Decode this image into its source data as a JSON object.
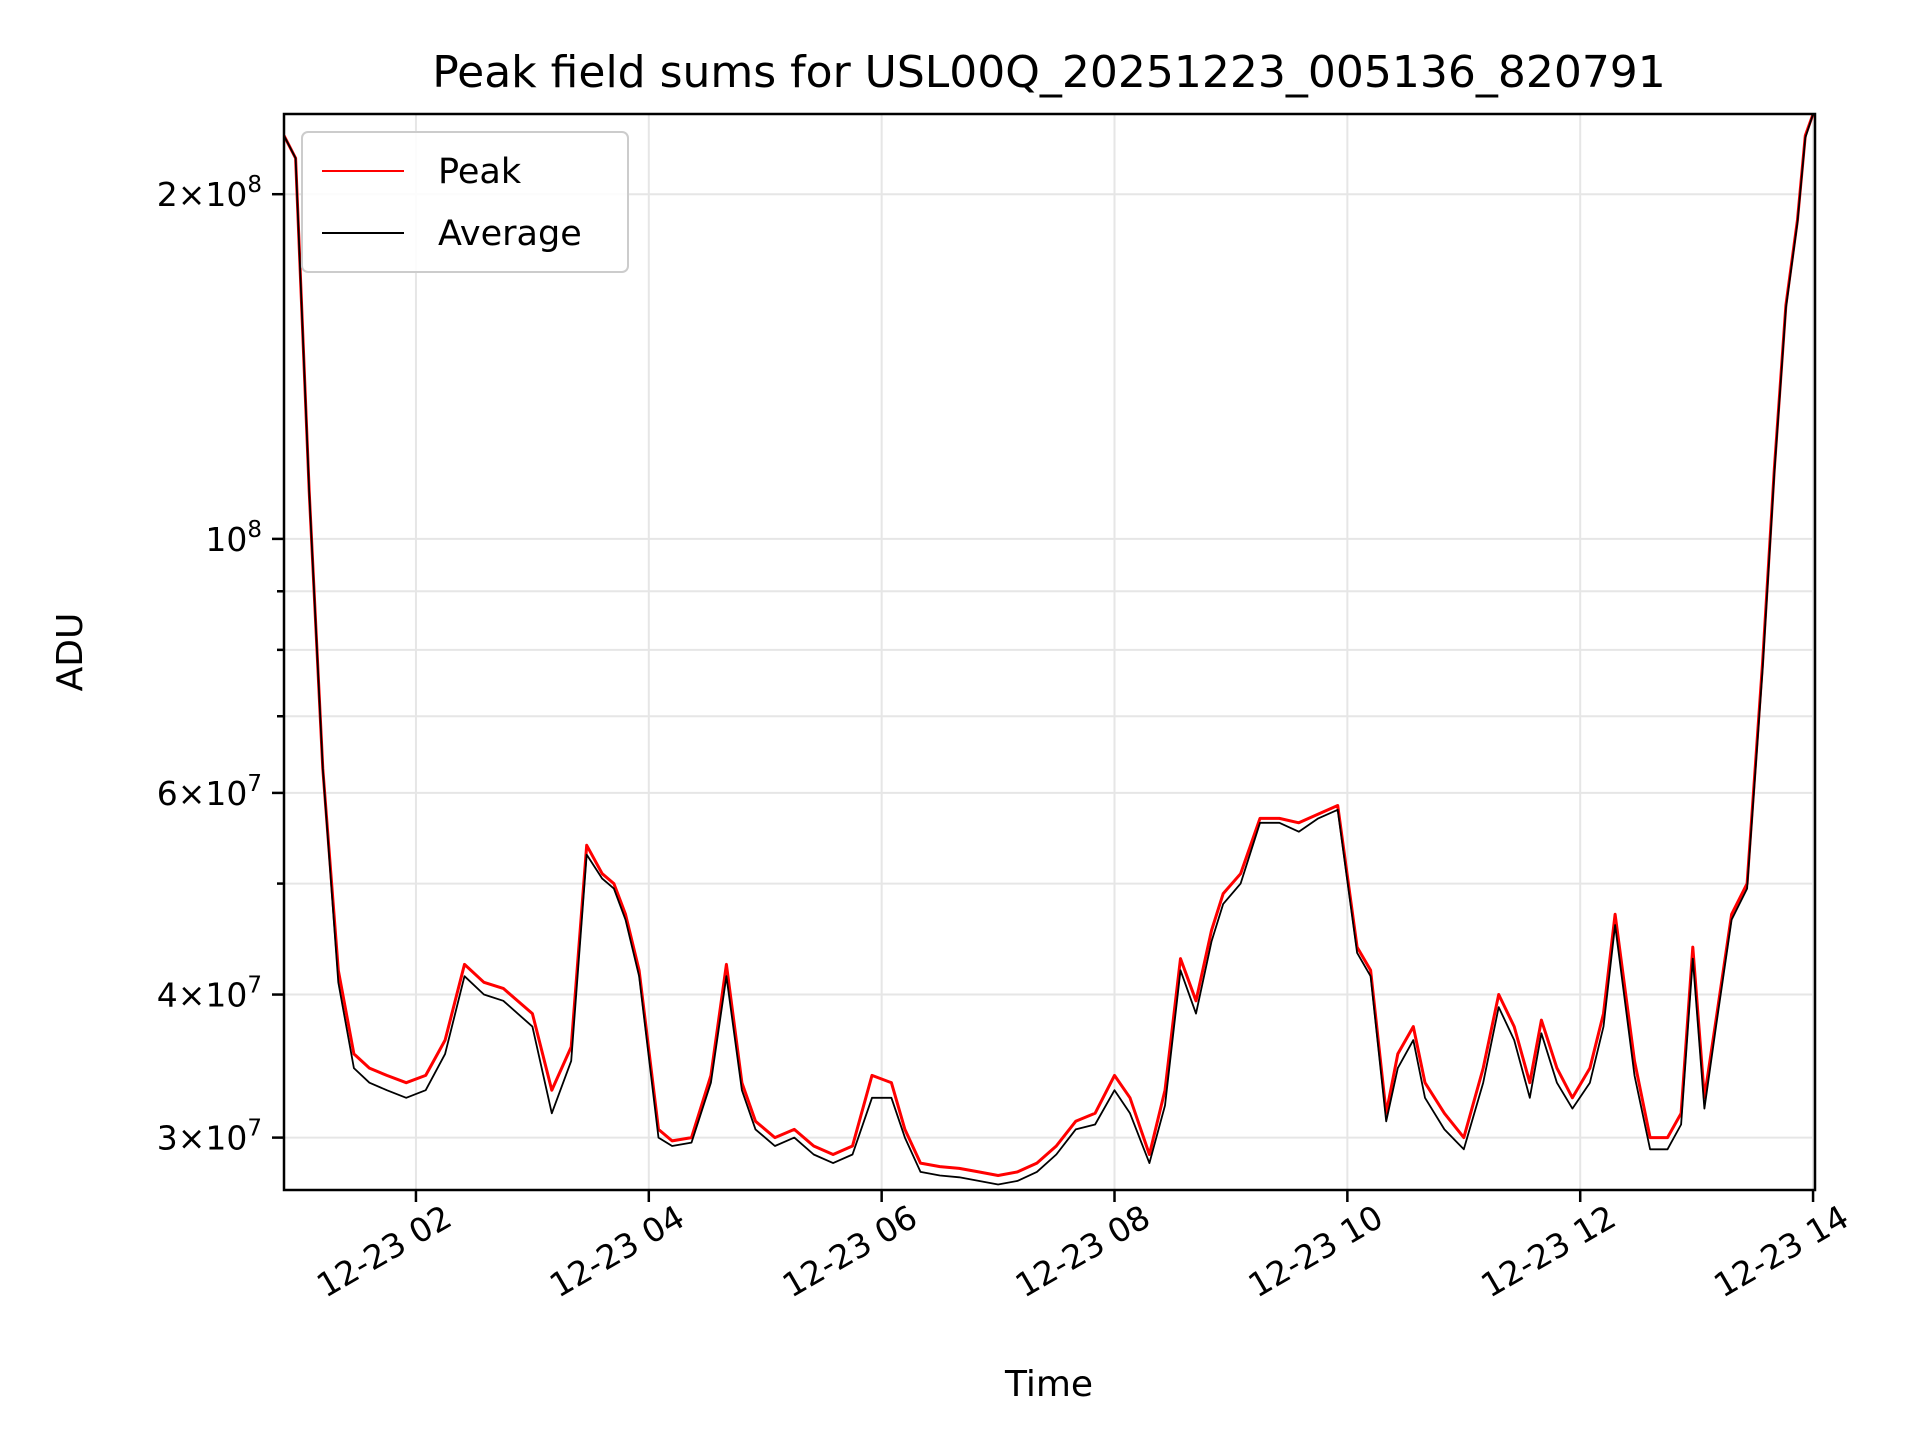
{
  "chart_data": {
    "type": "line",
    "title": "Peak field sums for USL00Q_20251223_005136_820791",
    "xlabel": "Time",
    "ylabel": "ADU",
    "yscale": "log",
    "xlim": [
      "2025-12-23 00:52",
      "2025-12-23 14:01"
    ],
    "ylim": [
      27000000,
      235000000
    ],
    "grid": true,
    "legend": "top-left",
    "x_ticks": [
      {
        "value": "2025-12-23 02:00",
        "label": "12-23 02"
      },
      {
        "value": "2025-12-23 04:00",
        "label": "12-23 04"
      },
      {
        "value": "2025-12-23 06:00",
        "label": "12-23 06"
      },
      {
        "value": "2025-12-23 08:00",
        "label": "12-23 08"
      },
      {
        "value": "2025-12-23 10:00",
        "label": "12-23 10"
      },
      {
        "value": "2025-12-23 12:00",
        "label": "12-23 12"
      },
      {
        "value": "2025-12-23 14:00",
        "label": "12-23 14"
      }
    ],
    "y_ticks": [
      {
        "value": 30000000,
        "mant": "3",
        "exp": "7"
      },
      {
        "value": 40000000,
        "mant": "4",
        "exp": "7"
      },
      {
        "value": 60000000,
        "mant": "6",
        "exp": "7"
      },
      {
        "value": 100000000,
        "mant": "",
        "exp": "8"
      },
      {
        "value": 200000000,
        "mant": "2",
        "exp": "8"
      }
    ],
    "y_minor_ticks": [
      50000000,
      70000000,
      80000000,
      90000000
    ],
    "series": [
      {
        "name": "Peak",
        "color": "#ff0000",
        "x": [
          "2025-12-23 00:52",
          "2025-12-23 00:58",
          "2025-12-23 01:05",
          "2025-12-23 01:12",
          "2025-12-23 01:20",
          "2025-12-23 01:28",
          "2025-12-23 01:36",
          "2025-12-23 01:45",
          "2025-12-23 01:55",
          "2025-12-23 02:05",
          "2025-12-23 02:15",
          "2025-12-23 02:25",
          "2025-12-23 02:35",
          "2025-12-23 02:45",
          "2025-12-23 03:00",
          "2025-12-23 03:10",
          "2025-12-23 03:20",
          "2025-12-23 03:28",
          "2025-12-23 03:36",
          "2025-12-23 03:42",
          "2025-12-23 03:48",
          "2025-12-23 03:55",
          "2025-12-23 04:05",
          "2025-12-23 04:12",
          "2025-12-23 04:22",
          "2025-12-23 04:32",
          "2025-12-23 04:40",
          "2025-12-23 04:48",
          "2025-12-23 04:55",
          "2025-12-23 05:05",
          "2025-12-23 05:15",
          "2025-12-23 05:25",
          "2025-12-23 05:35",
          "2025-12-23 05:45",
          "2025-12-23 05:55",
          "2025-12-23 06:05",
          "2025-12-23 06:12",
          "2025-12-23 06:20",
          "2025-12-23 06:30",
          "2025-12-23 06:40",
          "2025-12-23 06:50",
          "2025-12-23 07:00",
          "2025-12-23 07:10",
          "2025-12-23 07:20",
          "2025-12-23 07:30",
          "2025-12-23 07:40",
          "2025-12-23 07:50",
          "2025-12-23 08:00",
          "2025-12-23 08:08",
          "2025-12-23 08:18",
          "2025-12-23 08:26",
          "2025-12-23 08:34",
          "2025-12-23 08:42",
          "2025-12-23 08:50",
          "2025-12-23 08:56",
          "2025-12-23 09:05",
          "2025-12-23 09:15",
          "2025-12-23 09:25",
          "2025-12-23 09:35",
          "2025-12-23 09:45",
          "2025-12-23 09:55",
          "2025-12-23 10:05",
          "2025-12-23 10:12",
          "2025-12-23 10:20",
          "2025-12-23 10:26",
          "2025-12-23 10:34",
          "2025-12-23 10:40",
          "2025-12-23 10:50",
          "2025-12-23 11:00",
          "2025-12-23 11:10",
          "2025-12-23 11:18",
          "2025-12-23 11:26",
          "2025-12-23 11:34",
          "2025-12-23 11:40",
          "2025-12-23 11:48",
          "2025-12-23 11:56",
          "2025-12-23 12:05",
          "2025-12-23 12:12",
          "2025-12-23 12:18",
          "2025-12-23 12:28",
          "2025-12-23 12:36",
          "2025-12-23 12:45",
          "2025-12-23 12:52",
          "2025-12-23 12:58",
          "2025-12-23 13:04",
          "2025-12-23 13:10",
          "2025-12-23 13:18",
          "2025-12-23 13:26",
          "2025-12-23 13:34",
          "2025-12-23 13:40",
          "2025-12-23 13:46",
          "2025-12-23 13:52",
          "2025-12-23 13:56",
          "2025-12-23 14:00"
        ],
        "y": [
          225000000,
          215000000,
          110000000,
          63000000,
          42000000,
          35500000,
          34500000,
          34000000,
          33500000,
          34000000,
          36500000,
          42500000,
          41000000,
          40500000,
          38500000,
          33000000,
          36000000,
          54000000,
          51000000,
          50000000,
          47000000,
          42000000,
          30500000,
          29800000,
          30000000,
          34000000,
          42500000,
          33500000,
          31000000,
          30000000,
          30500000,
          29500000,
          29000000,
          29500000,
          34000000,
          33500000,
          30500000,
          28500000,
          28300000,
          28200000,
          28000000,
          27800000,
          28000000,
          28500000,
          29500000,
          31000000,
          31500000,
          34000000,
          32500000,
          29000000,
          33000000,
          43000000,
          39500000,
          45500000,
          49000000,
          51000000,
          57000000,
          57000000,
          56500000,
          57500000,
          58500000,
          44000000,
          42000000,
          31500000,
          35500000,
          37500000,
          33500000,
          31500000,
          30000000,
          34500000,
          40000000,
          37500000,
          33500000,
          38000000,
          34500000,
          32500000,
          34500000,
          38500000,
          47000000,
          35000000,
          30000000,
          30000000,
          31500000,
          44000000,
          32500000,
          38000000,
          47000000,
          50000000,
          78000000,
          115000000,
          160000000,
          190000000,
          225000000,
          235000000
        ]
      },
      {
        "name": "Average",
        "color": "#000000",
        "x": [
          "2025-12-23 00:52",
          "2025-12-23 00:58",
          "2025-12-23 01:05",
          "2025-12-23 01:12",
          "2025-12-23 01:20",
          "2025-12-23 01:28",
          "2025-12-23 01:36",
          "2025-12-23 01:45",
          "2025-12-23 01:55",
          "2025-12-23 02:05",
          "2025-12-23 02:15",
          "2025-12-23 02:25",
          "2025-12-23 02:35",
          "2025-12-23 02:45",
          "2025-12-23 03:00",
          "2025-12-23 03:10",
          "2025-12-23 03:20",
          "2025-12-23 03:28",
          "2025-12-23 03:36",
          "2025-12-23 03:42",
          "2025-12-23 03:48",
          "2025-12-23 03:55",
          "2025-12-23 04:05",
          "2025-12-23 04:12",
          "2025-12-23 04:22",
          "2025-12-23 04:32",
          "2025-12-23 04:40",
          "2025-12-23 04:48",
          "2025-12-23 04:55",
          "2025-12-23 05:05",
          "2025-12-23 05:15",
          "2025-12-23 05:25",
          "2025-12-23 05:35",
          "2025-12-23 05:45",
          "2025-12-23 05:55",
          "2025-12-23 06:05",
          "2025-12-23 06:12",
          "2025-12-23 06:20",
          "2025-12-23 06:30",
          "2025-12-23 06:40",
          "2025-12-23 06:50",
          "2025-12-23 07:00",
          "2025-12-23 07:10",
          "2025-12-23 07:20",
          "2025-12-23 07:30",
          "2025-12-23 07:40",
          "2025-12-23 07:50",
          "2025-12-23 08:00",
          "2025-12-23 08:08",
          "2025-12-23 08:18",
          "2025-12-23 08:26",
          "2025-12-23 08:34",
          "2025-12-23 08:42",
          "2025-12-23 08:50",
          "2025-12-23 08:56",
          "2025-12-23 09:05",
          "2025-12-23 09:15",
          "2025-12-23 09:25",
          "2025-12-23 09:35",
          "2025-12-23 09:45",
          "2025-12-23 09:55",
          "2025-12-23 10:05",
          "2025-12-23 10:12",
          "2025-12-23 10:20",
          "2025-12-23 10:26",
          "2025-12-23 10:34",
          "2025-12-23 10:40",
          "2025-12-23 10:50",
          "2025-12-23 11:00",
          "2025-12-23 11:10",
          "2025-12-23 11:18",
          "2025-12-23 11:26",
          "2025-12-23 11:34",
          "2025-12-23 11:40",
          "2025-12-23 11:48",
          "2025-12-23 11:56",
          "2025-12-23 12:05",
          "2025-12-23 12:12",
          "2025-12-23 12:18",
          "2025-12-23 12:28",
          "2025-12-23 12:36",
          "2025-12-23 12:45",
          "2025-12-23 12:52",
          "2025-12-23 12:58",
          "2025-12-23 13:04",
          "2025-12-23 13:10",
          "2025-12-23 13:18",
          "2025-12-23 13:26",
          "2025-12-23 13:34",
          "2025-12-23 13:40",
          "2025-12-23 13:46",
          "2025-12-23 13:52",
          "2025-12-23 13:56",
          "2025-12-23 14:00"
        ],
        "y": [
          225000000,
          215000000,
          110000000,
          63000000,
          41000000,
          34500000,
          33500000,
          33000000,
          32500000,
          33000000,
          35500000,
          41500000,
          40000000,
          39500000,
          37500000,
          31500000,
          35000000,
          53000000,
          50500000,
          49500000,
          46500000,
          41500000,
          30000000,
          29500000,
          29700000,
          33500000,
          41500000,
          33000000,
          30500000,
          29500000,
          30000000,
          29000000,
          28500000,
          29000000,
          32500000,
          32500000,
          30000000,
          28000000,
          27800000,
          27700000,
          27500000,
          27300000,
          27500000,
          28000000,
          29000000,
          30500000,
          30800000,
          33000000,
          31500000,
          28500000,
          32000000,
          42000000,
          38500000,
          44500000,
          48000000,
          50000000,
          56500000,
          56500000,
          55500000,
          57000000,
          58000000,
          43500000,
          41500000,
          31000000,
          34500000,
          36500000,
          32500000,
          30500000,
          29300000,
          33500000,
          39000000,
          36500000,
          32500000,
          37000000,
          33500000,
          31800000,
          33500000,
          37500000,
          46000000,
          34000000,
          29300000,
          29300000,
          30800000,
          43000000,
          31800000,
          37500000,
          46500000,
          49500000,
          77000000,
          114000000,
          159000000,
          189000000,
          224000000,
          235000000
        ]
      }
    ]
  }
}
